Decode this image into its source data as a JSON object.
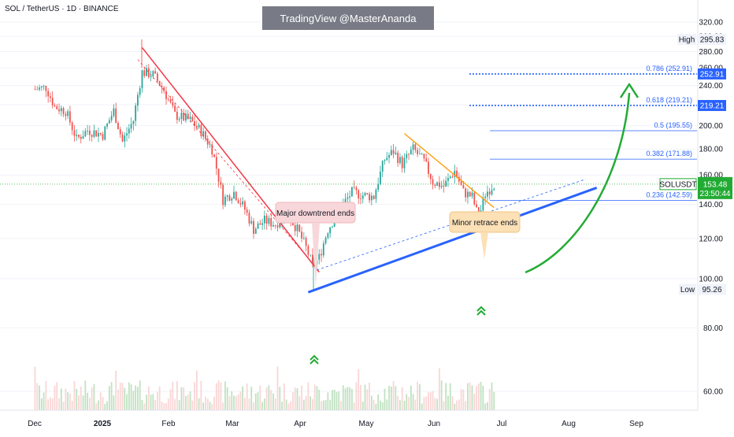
{
  "header": {
    "symbol": "SOL / TetherUS · 1D · BINANCE",
    "watermark": "TradingView @MasterAnanda"
  },
  "colors": {
    "up": "#26a69a",
    "down": "#ef5350",
    "fib": "#2962ff",
    "downtrend": "#f23645",
    "retrace": "#ff9800",
    "support": "#2962ff",
    "arrow": "#22ab34",
    "price_tag": "#22ab34"
  },
  "chart_data": {
    "type": "candlestick",
    "y_axis": {
      "min": 50,
      "max": 330,
      "scale": "log",
      "ticks": [
        "60.00",
        "80.00",
        "100.00",
        "120.00",
        "140.00",
        "160.00",
        "180.00",
        "200.00",
        "220.00",
        "240.00",
        "260.00",
        "280.00",
        "300.00",
        "320.00"
      ]
    },
    "x_axis": {
      "ticks": [
        "Dec",
        "2025",
        "Feb",
        "Mar",
        "Apr",
        "May",
        "Jun",
        "Jul",
        "Aug",
        "Sep"
      ]
    },
    "price_close": [
      {
        "date": "2024-12-01",
        "close": 236
      },
      {
        "date": "2024-12-06",
        "close": 238
      },
      {
        "date": "2024-12-10",
        "close": 218
      },
      {
        "date": "2024-12-15",
        "close": 214
      },
      {
        "date": "2024-12-20",
        "close": 188
      },
      {
        "date": "2024-12-25",
        "close": 196
      },
      {
        "date": "2025-01-01",
        "close": 192
      },
      {
        "date": "2025-01-06",
        "close": 214
      },
      {
        "date": "2025-01-10",
        "close": 186
      },
      {
        "date": "2025-01-15",
        "close": 205
      },
      {
        "date": "2025-01-19",
        "close": 255
      },
      {
        "date": "2025-01-24",
        "close": 252
      },
      {
        "date": "2025-01-29",
        "close": 235
      },
      {
        "date": "2025-02-03",
        "close": 210
      },
      {
        "date": "2025-02-10",
        "close": 205
      },
      {
        "date": "2025-02-15",
        "close": 195
      },
      {
        "date": "2025-02-20",
        "close": 180
      },
      {
        "date": "2025-02-25",
        "close": 143
      },
      {
        "date": "2025-03-02",
        "close": 148
      },
      {
        "date": "2025-03-07",
        "close": 137
      },
      {
        "date": "2025-03-11",
        "close": 125
      },
      {
        "date": "2025-03-16",
        "close": 130
      },
      {
        "date": "2025-03-21",
        "close": 128
      },
      {
        "date": "2025-03-26",
        "close": 135
      },
      {
        "date": "2025-03-31",
        "close": 125
      },
      {
        "date": "2025-04-04",
        "close": 115
      },
      {
        "date": "2025-04-07",
        "close": 106
      },
      {
        "date": "2025-04-10",
        "close": 110
      },
      {
        "date": "2025-04-14",
        "close": 125
      },
      {
        "date": "2025-04-20",
        "close": 138
      },
      {
        "date": "2025-04-25",
        "close": 148
      },
      {
        "date": "2025-04-30",
        "close": 146
      },
      {
        "date": "2025-05-05",
        "close": 145
      },
      {
        "date": "2025-05-10",
        "close": 172
      },
      {
        "date": "2025-05-14",
        "close": 178
      },
      {
        "date": "2025-05-18",
        "close": 168
      },
      {
        "date": "2025-05-23",
        "close": 180
      },
      {
        "date": "2025-05-28",
        "close": 170
      },
      {
        "date": "2025-06-01",
        "close": 155
      },
      {
        "date": "2025-06-06",
        "close": 152
      },
      {
        "date": "2025-06-11",
        "close": 163
      },
      {
        "date": "2025-06-15",
        "close": 148
      },
      {
        "date": "2025-06-19",
        "close": 145
      },
      {
        "date": "2025-06-22",
        "close": 131
      },
      {
        "date": "2025-06-25",
        "close": 147
      },
      {
        "date": "2025-06-29",
        "close": 153.48
      }
    ],
    "fib_levels": [
      {
        "ratio": "0.786",
        "price": 252.91,
        "label": "0.786 (252.91)"
      },
      {
        "ratio": "0.618",
        "price": 219.21,
        "label": "0.618 (219.21)"
      },
      {
        "ratio": "0.5",
        "price": 195.55,
        "label": "0.5 (195.55)"
      },
      {
        "ratio": "0.382",
        "price": 171.88,
        "label": "0.382 (171.88)"
      },
      {
        "ratio": "0.236",
        "price": 142.59,
        "label": "0.236 (142.59)"
      }
    ],
    "price_tags": [
      {
        "text": "252.91",
        "price": 252.91
      },
      {
        "text": "219.21",
        "price": 219.21
      }
    ],
    "high": {
      "label": "High",
      "value": "295.83",
      "price": 295.83
    },
    "low": {
      "label": "Low",
      "value": "95.26",
      "price": 95.26
    },
    "last": {
      "symbol": "SOLUSDT",
      "price": "153.48",
      "countdown": "23:50:44",
      "value": 153.48
    },
    "annotations": [
      {
        "text": "Major downtrend ends"
      },
      {
        "text": "Minor retrace ends"
      }
    ]
  }
}
